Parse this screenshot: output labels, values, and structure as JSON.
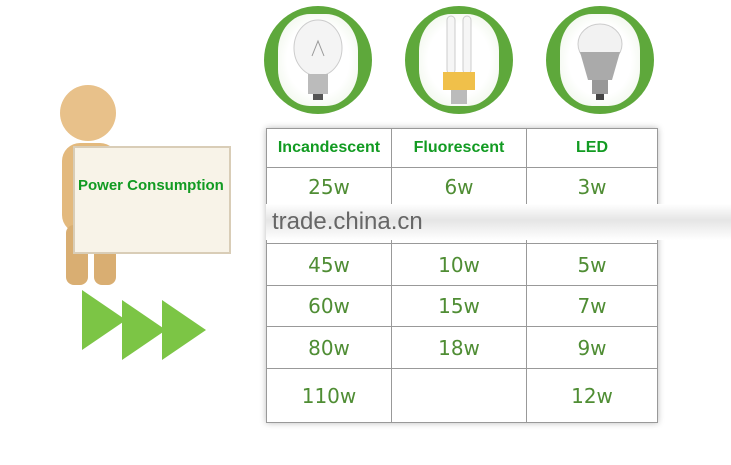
{
  "figure": {
    "sign_text": "Power Consumption"
  },
  "bulbs": [
    {
      "icon": "incandescent-bulb-icon"
    },
    {
      "icon": "fluorescent-bulb-icon"
    },
    {
      "icon": "led-bulb-icon"
    }
  ],
  "table": {
    "headers": [
      "Incandescent",
      "Fluorescent",
      "LED"
    ],
    "rows": [
      [
        "25w",
        "6w",
        "3w"
      ],
      [
        "45w",
        "10w",
        "5w"
      ],
      [
        "60w",
        "15w",
        "7w"
      ],
      [
        "80w",
        "18w",
        "9w"
      ],
      [
        "110w",
        "",
        "12w"
      ]
    ]
  },
  "watermark": "trade.china.cn",
  "colors": {
    "accent": "#5ea83b",
    "header_text": "#129b22",
    "value_text": "#4f8d34"
  }
}
